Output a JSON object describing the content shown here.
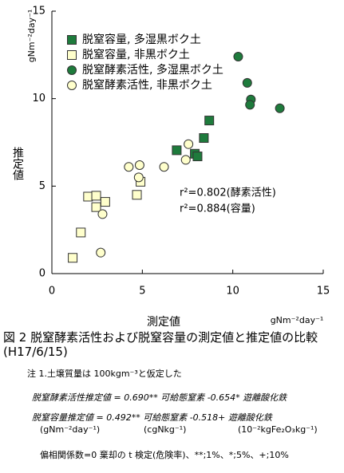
{
  "chart_data": {
    "type": "scatter",
    "y_unit": "gNm⁻²day⁻¹",
    "ylabel": "推定値",
    "xlabel": "測定値",
    "x_unit": "gNm⁻²day⁻¹",
    "xlim": [
      0,
      15
    ],
    "ylim": [
      0,
      15
    ],
    "xticks": [
      0,
      5,
      10,
      15
    ],
    "yticks": [
      0,
      5,
      10,
      15
    ],
    "legend": "upper left",
    "series": [
      {
        "name": "脱窒容量, 多湿黒ボク土",
        "marker": "square",
        "color": "#1e7b3c",
        "x": [
          6.9,
          7.9,
          8.05,
          8.4,
          8.7
        ],
        "values": [
          7.05,
          6.85,
          6.7,
          7.75,
          8.75
        ]
      },
      {
        "name": "脱窒容量, 非黒ボク土",
        "marker": "square",
        "color": "#ffffcc",
        "x": [
          1.15,
          1.6,
          2.0,
          2.45,
          2.45,
          2.95,
          4.7,
          4.9
        ],
        "values": [
          0.9,
          2.35,
          4.4,
          4.45,
          3.8,
          4.1,
          4.5,
          5.25
        ]
      },
      {
        "name": "脱窒酵素活性, 多湿黒ボク土",
        "marker": "circle",
        "color": "#1e7b3c",
        "x": [
          10.3,
          10.8,
          11.0,
          10.95,
          12.6
        ],
        "values": [
          12.4,
          10.9,
          9.95,
          9.65,
          9.45
        ]
      },
      {
        "name": "脱窒酵素活性, 非黒ボク土",
        "marker": "circle",
        "color": "#ffffcc",
        "x": [
          2.7,
          2.8,
          4.25,
          4.85,
          4.8,
          6.2,
          7.55,
          7.4
        ],
        "values": [
          1.2,
          3.4,
          6.1,
          6.2,
          5.5,
          6.1,
          7.4,
          6.5
        ]
      }
    ],
    "annotations": [
      "r²=0.802(酵素活性)",
      "r²=0.884(容量)"
    ]
  },
  "caption": "図 2  脱窒酵素活性および脱窒容量の測定値と推定値の比較(H17/6/15)",
  "notes": {
    "assumption": "注 1.土壌質量は 100kgm⁻³と仮定した",
    "formula1": "脱窒酵素活性推定値 = 0.690** 可給態窒素 -0.654* 遊離酸化鉄",
    "formula2": "脱窒容量推定値 = 0.492** 可給態窒素 -0.518+ 遊離酸化鉄",
    "units": [
      "(gNm⁻²day⁻¹)",
      "(cgNkg⁻¹)",
      "(10⁻²kgFe₂O₃kg⁻¹)"
    ],
    "test": "偏相関係数=0 棄却の t 検定(危険率)、**;1%、*;5%、+;10%"
  }
}
